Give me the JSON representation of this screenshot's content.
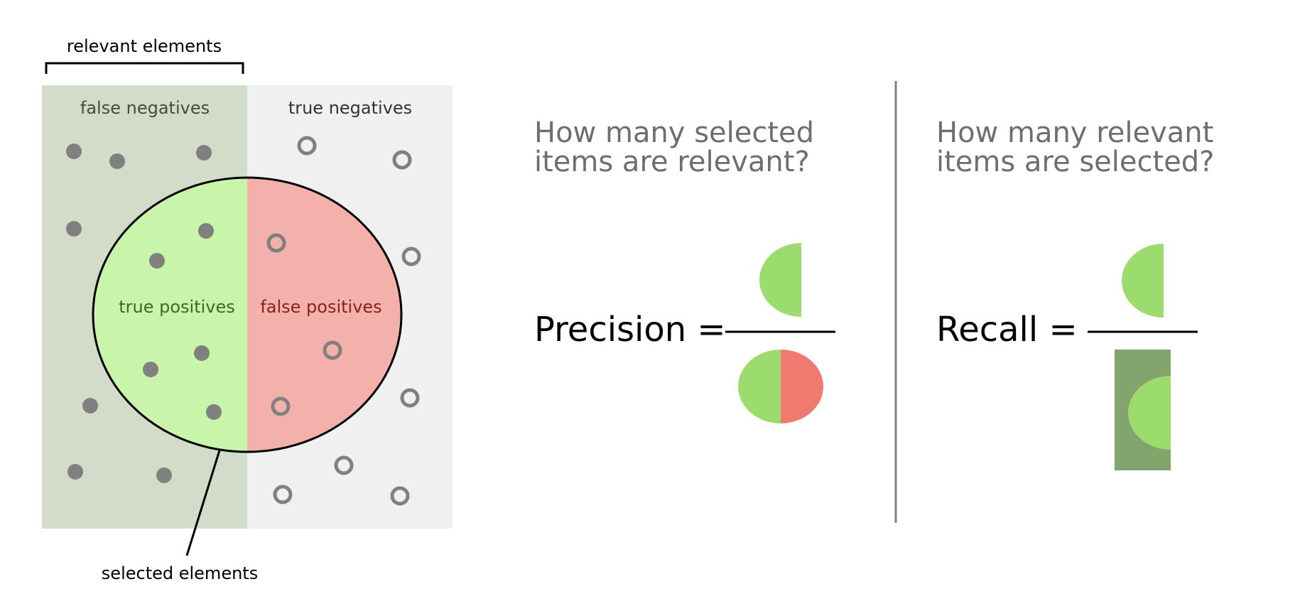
{
  "labels": {
    "relevant_elements": "relevant elements",
    "selected_elements": "selected elements",
    "false_negatives": "false negatives",
    "true_negatives": "true negatives",
    "true_positives": "true positives",
    "false_positives": "false positives"
  },
  "precision": {
    "question_line1": "How many selected",
    "question_line2": "items are relevant?",
    "formula_label": "Precision ="
  },
  "recall": {
    "question_line1": "How many relevant",
    "question_line2": "items are selected?",
    "formula_label": "Recall ="
  },
  "colors": {
    "relevant_region": "#d2dcc9",
    "irrelevant_region": "#f0f0f0",
    "true_positive_fill": "#c8f5aa",
    "false_positive_fill": "#f4b0aa",
    "dot": "#808080",
    "true_positives_text": "#3a6b2a",
    "false_positives_text": "#8b1f1f",
    "region_label_text": "#444c3c",
    "question_text": "#6e6e6e",
    "icon_green": "#9cdc6e",
    "icon_red": "#f07a70",
    "icon_dark_green": "#84a46e",
    "divider": "#808080"
  },
  "symbols": {
    "filled_dots": "relevant items",
    "hollow_circles": "irrelevant items"
  }
}
